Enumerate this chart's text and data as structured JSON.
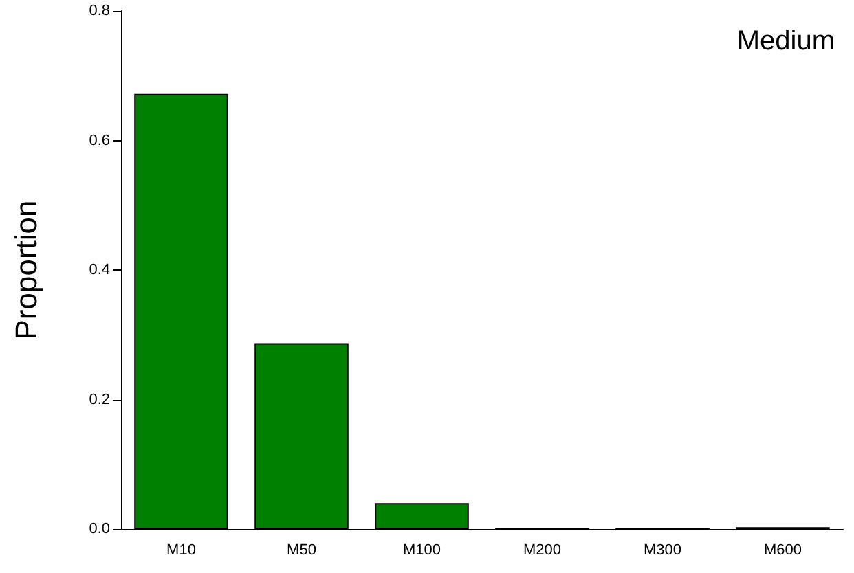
{
  "chart_data": {
    "type": "bar",
    "ylabel": "Proportion",
    "annotations": [
      "Medium"
    ],
    "categories": [
      "M10",
      "M50",
      "M100",
      "M200",
      "M300",
      "M600"
    ],
    "values": [
      0.672,
      0.287,
      0.04,
      0,
      0,
      0.003
    ],
    "color": "#008000",
    "ylim": [
      0,
      0.8
    ],
    "yticks": [
      {
        "value": 0,
        "label": "0.0"
      },
      {
        "value": 0.2,
        "label": "0.2"
      },
      {
        "value": 0.4,
        "label": "0.4"
      },
      {
        "value": 0.6,
        "label": "0.6"
      },
      {
        "value": 0.8,
        "label": "0.8"
      }
    ],
    "data_labels": false
  }
}
